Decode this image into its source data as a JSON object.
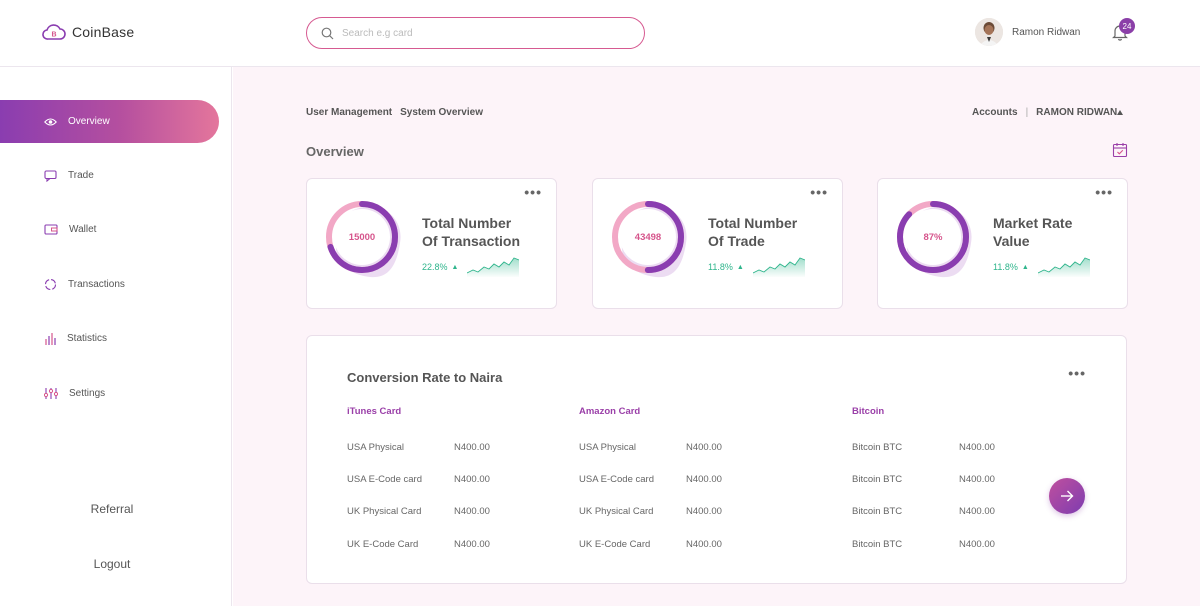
{
  "app": {
    "name": "CoinBase"
  },
  "search": {
    "placeholder": "Search e.g card"
  },
  "user": {
    "name": "Ramon Ridwan",
    "notifications": "24"
  },
  "sidebar": {
    "items": [
      {
        "label": "Overview",
        "icon": "eye-icon",
        "active": true
      },
      {
        "label": "Trade",
        "icon": "chat-icon"
      },
      {
        "label": "Wallet",
        "icon": "wallet-icon"
      },
      {
        "label": "Transactions",
        "icon": "refresh-icon"
      },
      {
        "label": "Statistics",
        "icon": "bar-chart-icon"
      },
      {
        "label": "Settings",
        "icon": "sliders-icon"
      }
    ],
    "referral": "Referral",
    "logout": "Logout"
  },
  "breadcrumbs": {
    "first": "User Management",
    "second": "System Overview"
  },
  "accounts": {
    "label": "Accounts",
    "sep": "|",
    "name": "RAMON RIDWAN"
  },
  "overview": {
    "title": "Overview"
  },
  "cards": [
    {
      "value": "15000",
      "title_line1": "Total Number",
      "title_line2": "Of Transaction",
      "pct": "22.8%",
      "progress": 0.7
    },
    {
      "value": "43498",
      "title_line1": "Total Number",
      "title_line2": "Of Trade",
      "pct": "11.8%",
      "progress": 0.5
    },
    {
      "value": "87%",
      "title_line1": "Market Rate",
      "title_line2": "Value",
      "pct": "11.8%",
      "progress": 0.87
    }
  ],
  "conversion": {
    "title": "Conversion Rate to Naira",
    "columns": [
      {
        "head": "iTunes Card",
        "rows": [
          {
            "label": "USA Physical",
            "value": "N400.00"
          },
          {
            "label": "USA E-Code card",
            "value": "N400.00"
          },
          {
            "label": "UK Physical Card",
            "value": "N400.00"
          },
          {
            "label": "UK E-Code Card",
            "value": "N400.00"
          }
        ]
      },
      {
        "head": "Amazon Card",
        "rows": [
          {
            "label": "USA Physical",
            "value": "N400.00"
          },
          {
            "label": "USA E-Code card",
            "value": "N400.00"
          },
          {
            "label": "UK Physical Card",
            "value": "N400.00"
          },
          {
            "label": "UK E-Code Card",
            "value": "N400.00"
          }
        ]
      },
      {
        "head": "Bitcoin",
        "rows": [
          {
            "label": "Bitcoin BTC",
            "value": "N400.00"
          },
          {
            "label": "Bitcoin BTC",
            "value": "N400.00"
          },
          {
            "label": "Bitcoin BTC",
            "value": "N400.00"
          },
          {
            "label": "Bitcoin BTC",
            "value": "N400.00"
          }
        ]
      }
    ]
  },
  "colors": {
    "accent_purple": "#8a3db0",
    "accent_pink": "#e4769c",
    "positive": "#2fb58c"
  }
}
